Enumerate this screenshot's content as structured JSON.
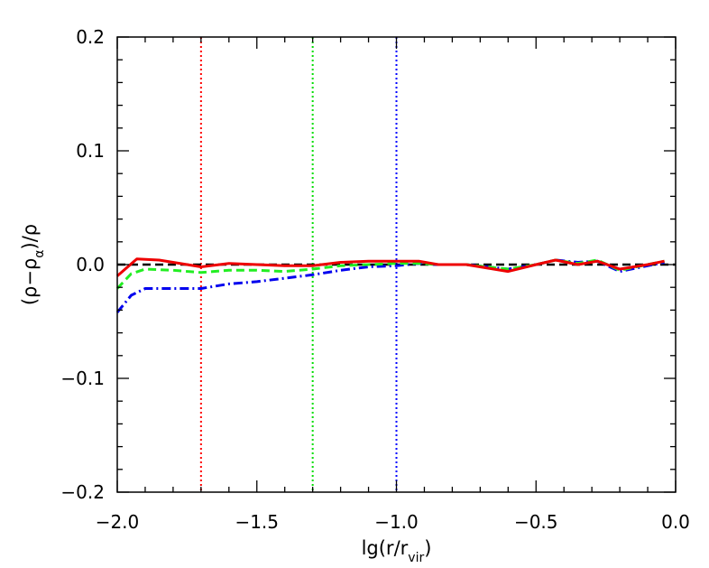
{
  "chart_data": {
    "type": "line",
    "title": "",
    "xlabel": {
      "main": "lg(r/r",
      "sub": "vir",
      "close": ")"
    },
    "ylabel": {
      "open": "(ρ−ρ",
      "sub": "α",
      "close": ")/ρ"
    },
    "xlim": [
      -2.0,
      0.0
    ],
    "ylim": [
      -0.2,
      0.2
    ],
    "xticks": [
      -2.0,
      -1.5,
      -1.0,
      -0.5,
      0.0
    ],
    "xtick_labels": [
      "−2.0",
      "−1.5",
      "−1.0",
      "−0.5",
      "0.0"
    ],
    "yticks": [
      -0.2,
      -0.1,
      0.0,
      0.1,
      0.2
    ],
    "ytick_labels": [
      "−0.2",
      "−0.1",
      "0.0",
      "0.1",
      "0.2"
    ],
    "grid": false,
    "reference_line": {
      "y": 0.0,
      "color": "#000000",
      "style": "dashed"
    },
    "vlines": [
      {
        "x": -1.7,
        "color": "#ff0000",
        "style": "dotted"
      },
      {
        "x": -1.3,
        "color": "#00dd00",
        "style": "dotted"
      },
      {
        "x": -1.0,
        "color": "#0000ff",
        "style": "dotted"
      }
    ],
    "series": [
      {
        "color": "#ee0000",
        "style": "solid",
        "x": [
          -2.0,
          -1.93,
          -1.85,
          -1.75,
          -1.7,
          -1.6,
          -1.5,
          -1.4,
          -1.3,
          -1.2,
          -1.1,
          -1.0,
          -0.92,
          -0.85,
          -0.75,
          -0.6,
          -0.5,
          -0.43,
          -0.35,
          -0.28,
          -0.2,
          -0.1,
          -0.04
        ],
        "values": [
          -0.01,
          0.005,
          0.004,
          0.0,
          -0.002,
          0.001,
          0.0,
          -0.001,
          -0.001,
          0.002,
          0.003,
          0.003,
          0.003,
          0.0,
          0.0,
          -0.006,
          0.0,
          0.004,
          0.0,
          0.003,
          -0.004,
          0.0,
          0.003
        ]
      },
      {
        "color": "#22ee22",
        "style": "dashed",
        "x": [
          -2.0,
          -1.95,
          -1.9,
          -1.8,
          -1.7,
          -1.6,
          -1.5,
          -1.4,
          -1.3,
          -1.2,
          -1.1,
          -1.0,
          -0.92,
          -0.85,
          -0.75,
          -0.6,
          -0.5,
          -0.43,
          -0.35,
          -0.28,
          -0.2,
          -0.1,
          -0.04
        ],
        "values": [
          -0.021,
          -0.008,
          -0.004,
          -0.005,
          -0.007,
          -0.005,
          -0.005,
          -0.006,
          -0.004,
          -0.001,
          0.0,
          0.001,
          0.001,
          0.0,
          0.0,
          -0.004,
          0.0,
          0.004,
          0.001,
          0.004,
          -0.005,
          0.0,
          0.003
        ]
      },
      {
        "color": "#0000ee",
        "style": "dashdot",
        "x": [
          -2.0,
          -1.95,
          -1.9,
          -1.8,
          -1.7,
          -1.6,
          -1.5,
          -1.4,
          -1.3,
          -1.2,
          -1.1,
          -1.0,
          -0.92,
          -0.85,
          -0.75,
          -0.6,
          -0.5,
          -0.43,
          -0.35,
          -0.28,
          -0.2,
          -0.1,
          -0.04
        ],
        "values": [
          -0.042,
          -0.027,
          -0.021,
          -0.021,
          -0.021,
          -0.017,
          -0.015,
          -0.012,
          -0.009,
          -0.005,
          -0.002,
          -0.001,
          0.001,
          0.0,
          0.0,
          -0.004,
          0.0,
          0.004,
          0.002,
          0.003,
          -0.006,
          -0.001,
          0.002
        ]
      }
    ]
  }
}
